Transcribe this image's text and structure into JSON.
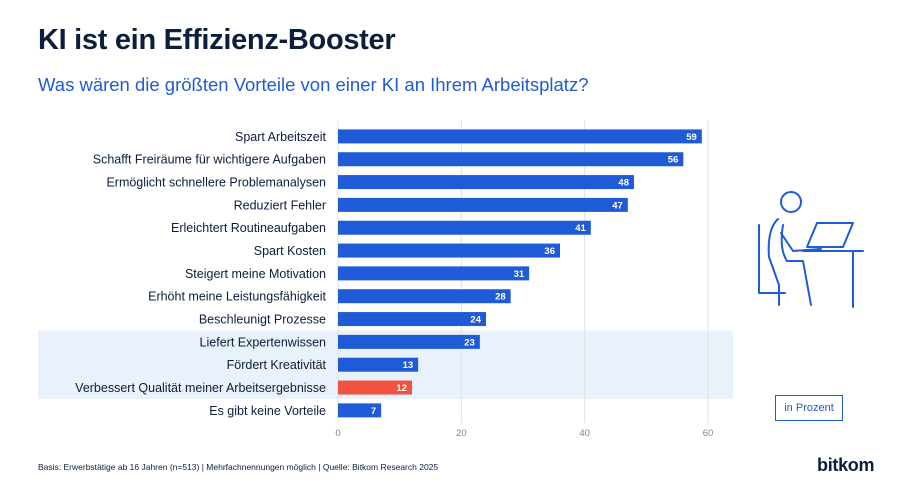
{
  "header": {
    "title": "KI ist ein Effizienz-Booster",
    "subtitle": "Was wären die größten Vorteile von einer KI an Ihrem Arbeitsplatz?"
  },
  "chart_data": {
    "type": "bar",
    "orientation": "horizontal",
    "categories": [
      "Spart Arbeitszeit",
      "Schafft Freiräume für wichtigere Aufgaben",
      "Ermöglicht schnellere Problemanalysen",
      "Reduziert Fehler",
      "Erleichtert Routineaufgaben",
      "Spart Kosten",
      "Steigert meine Motivation",
      "Erhöht meine Leistungsfähigkeit",
      "Beschleunigt Prozesse",
      "Liefert Expertenwissen",
      "Fördert Kreativität",
      "Verbessert Qualität meiner Arbeitsergebnisse",
      "Es gibt keine Vorteile"
    ],
    "values": [
      59,
      56,
      48,
      47,
      41,
      36,
      31,
      28,
      24,
      23,
      13,
      12,
      7
    ],
    "highlighted_categories": [
      "Liefert Expertenwissen",
      "Fördert Kreativität",
      "Verbessert Qualität meiner Arbeitsergebnisse"
    ],
    "accent_category": "Verbessert Qualität meiner Arbeitsergebnisse",
    "xlim": [
      0,
      60
    ],
    "xticks": [
      0,
      20,
      40,
      60
    ],
    "unit_label": "in Prozent",
    "colors": {
      "bar": "#1f5bd6",
      "accent_bar": "#f0533f",
      "highlight_band": "#e9f1fb",
      "grid": "#dde2ea"
    }
  },
  "footer": {
    "note": "Basis: Erwerbstätige ab 16 Jahren (n=513) | Mehrfachnennungen möglich | Quelle: Bitkom Research 2025",
    "logo": "bitkom"
  },
  "illustration": {
    "icon": "person-at-laptop-icon"
  }
}
